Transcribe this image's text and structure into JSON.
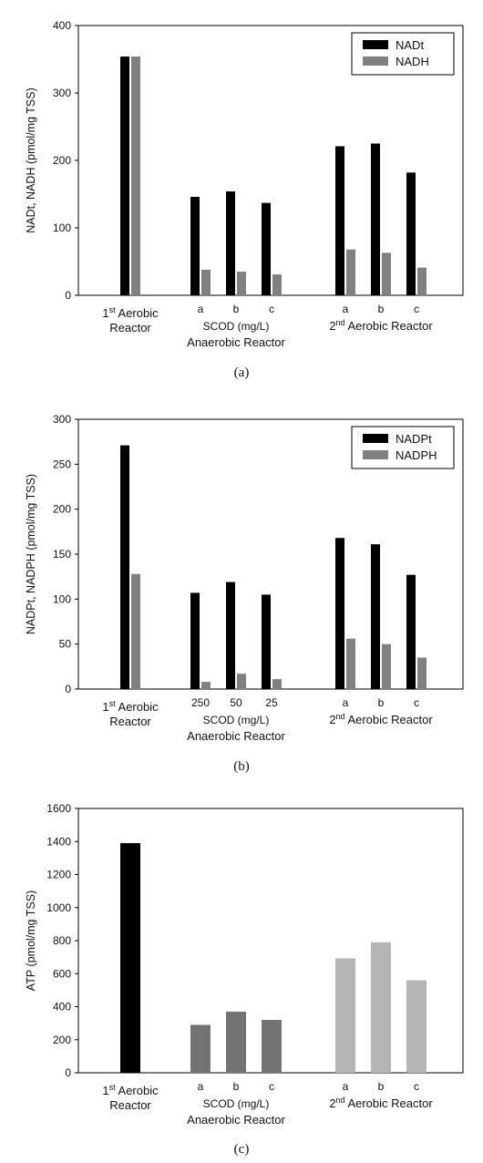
{
  "chart_data": [
    {
      "type": "bar",
      "caption": "(a)",
      "ylabel": "NADt, NADH (pmol/mg TSS)",
      "ylim": [
        0,
        400
      ],
      "yticks": [
        0,
        100,
        200,
        300,
        400
      ],
      "categories": [
        "1st Aerobic Reactor",
        "a",
        "b",
        "c",
        "a",
        "b",
        "c"
      ],
      "group_labels": {
        "first": {
          "line1_main": "1",
          "line1_sup": "st",
          "line1_rest": " Aerobic",
          "line2": "Reactor"
        },
        "middle": {
          "sub": "SCOD (mg/L)",
          "main": "Anaerobic Reactor"
        },
        "last": {
          "main_prefix": "2",
          "main_sup": "nd",
          "main_rest": " Aerobic Reactor"
        }
      },
      "series": [
        {
          "name": "NADt",
          "color": "#000000",
          "values": [
            354,
            146,
            154,
            137,
            221,
            225,
            182
          ]
        },
        {
          "name": "NADH",
          "color": "#808080",
          "values": [
            354,
            38,
            35,
            31,
            68,
            63,
            41
          ]
        }
      ],
      "legend": "top-right"
    },
    {
      "type": "bar",
      "caption": "(b)",
      "ylabel": "NADPt, NADPH (pmol/mg TSS)",
      "ylim": [
        0,
        300
      ],
      "yticks": [
        0,
        50,
        100,
        150,
        200,
        250,
        300
      ],
      "categories": [
        "1st Aerobic Reactor",
        "250",
        "50",
        "25",
        "a",
        "b",
        "c"
      ],
      "group_labels": {
        "first": {
          "line1_main": "1",
          "line1_sup": "st",
          "line1_rest": " Aerobic",
          "line2": "Reactor"
        },
        "middle": {
          "sub": "SCOD (mg/L)",
          "main": "Anaerobic Reactor"
        },
        "last": {
          "main_prefix": "2",
          "main_sup": "nd",
          "main_rest": " Aerobic Reactor"
        }
      },
      "series": [
        {
          "name": "NADPt",
          "color": "#000000",
          "values": [
            271,
            107,
            119,
            105,
            168,
            161,
            127
          ]
        },
        {
          "name": "NADPH",
          "color": "#808080",
          "values": [
            128,
            8,
            17,
            11,
            56,
            50,
            35
          ]
        }
      ],
      "legend": "top-right"
    },
    {
      "type": "bar",
      "caption": "(c)",
      "ylabel": "ATP (pmol/mg TSS)",
      "ylim": [
        0,
        1600
      ],
      "yticks": [
        0,
        200,
        400,
        600,
        800,
        1000,
        1200,
        1400,
        1600
      ],
      "categories": [
        "1st Aerobic Reactor",
        "a",
        "b",
        "c",
        "a",
        "b",
        "c"
      ],
      "group_labels": {
        "first": {
          "line1_main": "1",
          "line1_sup": "st",
          "line1_rest": " Aerobic",
          "line2": "Reactor"
        },
        "middle": {
          "sub": "SCOD (mg/L)",
          "main": "Anaerobic Reactor"
        },
        "last": {
          "main_prefix": "2",
          "main_sup": "nd",
          "main_rest": " Aerobic Reactor"
        }
      },
      "series": [
        {
          "values": [
            1390,
            290,
            370,
            320,
            693,
            790,
            560
          ]
        }
      ],
      "bar_colors": [
        "#000000",
        "#737373",
        "#737373",
        "#737373",
        "#b5b5b5",
        "#b5b5b5",
        "#b5b5b5"
      ]
    }
  ]
}
